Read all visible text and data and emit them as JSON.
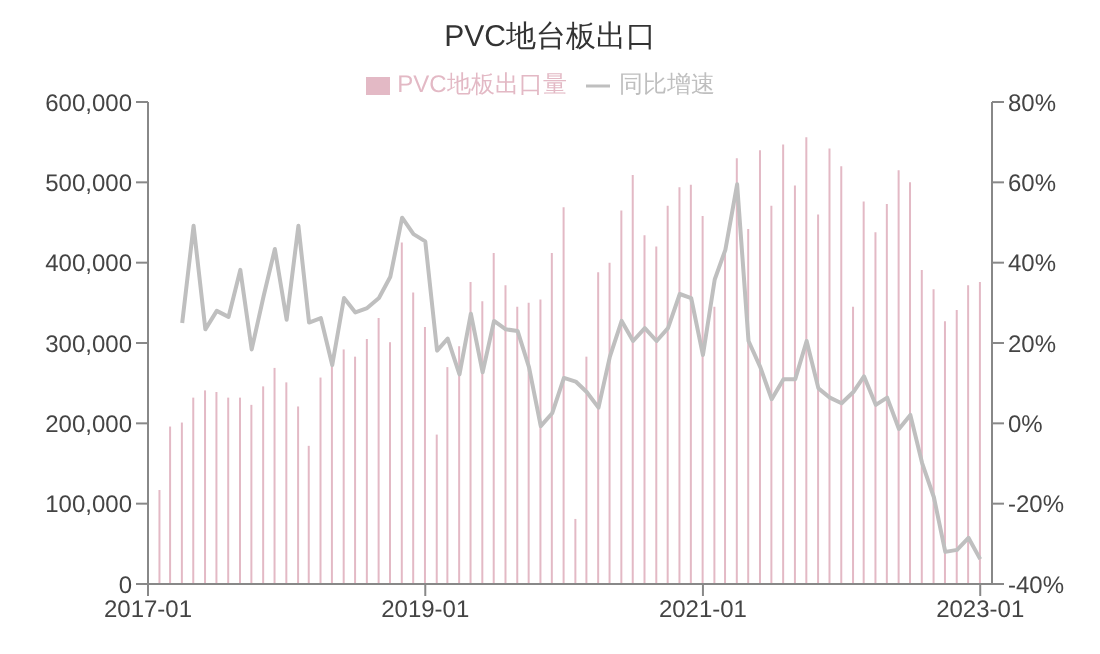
{
  "chart_data": {
    "type": "bar",
    "title": "PVC地台板出口",
    "x": [
      "2017-02",
      "2017-03",
      "2017-04",
      "2017-05",
      "2017-06",
      "2017-07",
      "2017-08",
      "2017-09",
      "2017-10",
      "2017-11",
      "2017-12",
      "2018-01",
      "2018-02",
      "2018-03",
      "2018-04",
      "2018-05",
      "2018-06",
      "2018-07",
      "2018-08",
      "2018-09",
      "2018-10",
      "2018-11",
      "2018-12",
      "2019-01",
      "2019-02",
      "2019-03",
      "2019-04",
      "2019-05",
      "2019-06",
      "2019-07",
      "2019-08",
      "2019-09",
      "2019-10",
      "2019-11",
      "2019-12",
      "2020-01",
      "2020-02",
      "2020-03",
      "2020-04",
      "2020-05",
      "2020-06",
      "2020-07",
      "2020-08",
      "2020-09",
      "2020-10",
      "2020-11",
      "2020-12",
      "2021-01",
      "2021-02",
      "2021-03",
      "2021-04",
      "2021-05",
      "2021-06",
      "2021-07",
      "2021-08",
      "2021-09",
      "2021-10",
      "2021-11",
      "2021-12",
      "2022-01",
      "2022-02",
      "2022-03",
      "2022-04",
      "2022-05",
      "2022-06",
      "2022-07",
      "2022-08",
      "2022-09",
      "2022-10",
      "2022-11",
      "2022-12",
      "2023-01"
    ],
    "series": [
      {
        "name": "PVC地板出口量",
        "color": "#e3b9c5",
        "values": [
          117000,
          196000,
          201000,
          232000,
          241000,
          239000,
          232000,
          232000,
          223000,
          246000,
          269000,
          251000,
          221000,
          172000,
          257000,
          274000,
          292000,
          283000,
          305000,
          331000,
          301000,
          425000,
          363000,
          320000,
          186000,
          270000,
          296000,
          376000,
          352000,
          412000,
          372000,
          345000,
          350000,
          354000,
          412000,
          469000,
          81000,
          283000,
          388000,
          400000,
          465000,
          509000,
          434000,
          420000,
          471000,
          494000,
          497000,
          458000,
          345000,
          416000,
          530000,
          442000,
          540000,
          471000,
          547000,
          496000,
          556000,
          460000,
          542000,
          520000,
          345000,
          476000,
          438000,
          473000,
          515000,
          500000,
          391000,
          367000,
          327000,
          341000,
          372000,
          376000
        ]
      },
      {
        "name": "同比增速",
        "type": "line",
        "axis": "y2",
        "color": "#bfbfbf",
        "values": [
          null,
          null,
          25.0,
          49.2,
          23.4,
          28.0,
          26.5,
          38.2,
          18.4,
          31.5,
          43.4,
          25.8,
          49.2,
          25.1,
          26.2,
          14.5,
          31.2,
          27.6,
          28.7,
          31.2,
          36.5,
          51.2,
          47.1,
          45.3,
          18.1,
          21.1,
          12.2,
          27.3,
          12.7,
          25.5,
          23.4,
          23.0,
          14.0,
          -0.7,
          2.5,
          11.3,
          10.4,
          7.8,
          3.9,
          16.6,
          25.5,
          20.5,
          23.7,
          20.5,
          23.7,
          32.2,
          31.2,
          17.0,
          35.8,
          43.2,
          59.5,
          20.5,
          14.0,
          6.0,
          11.0,
          11.0,
          20.5,
          8.7,
          6.4,
          5.0,
          7.8,
          11.7,
          4.6,
          6.4,
          -1.4,
          2.1,
          -9.9,
          -18.4,
          -32.0,
          -31.5,
          -28.5,
          -33.8
        ]
      }
    ],
    "xlim": [
      "2017-01",
      "2023-02"
    ],
    "xticks": [
      "2017-01",
      "2019-01",
      "2021-01",
      "2023-01"
    ],
    "ylim": [
      0,
      600000
    ],
    "yticks": [
      {
        "value": 0,
        "label": "0"
      },
      {
        "value": 100000,
        "label": "100,000"
      },
      {
        "value": 200000,
        "label": "200,000"
      },
      {
        "value": 300000,
        "label": "300,000"
      },
      {
        "value": 400000,
        "label": "400,000"
      },
      {
        "value": 500000,
        "label": "500,000"
      },
      {
        "value": 600000,
        "label": "600,000"
      }
    ],
    "y2lim": [
      -40,
      80
    ],
    "y2ticks": [
      {
        "value": -40,
        "label": "-40%"
      },
      {
        "value": -20,
        "label": "-20%"
      },
      {
        "value": 0,
        "label": "0%"
      },
      {
        "value": 20,
        "label": "20%"
      },
      {
        "value": 40,
        "label": "40%"
      },
      {
        "value": 60,
        "label": "60%"
      },
      {
        "value": 80,
        "label": "80%"
      }
    ],
    "legend": "top",
    "grid": false
  }
}
